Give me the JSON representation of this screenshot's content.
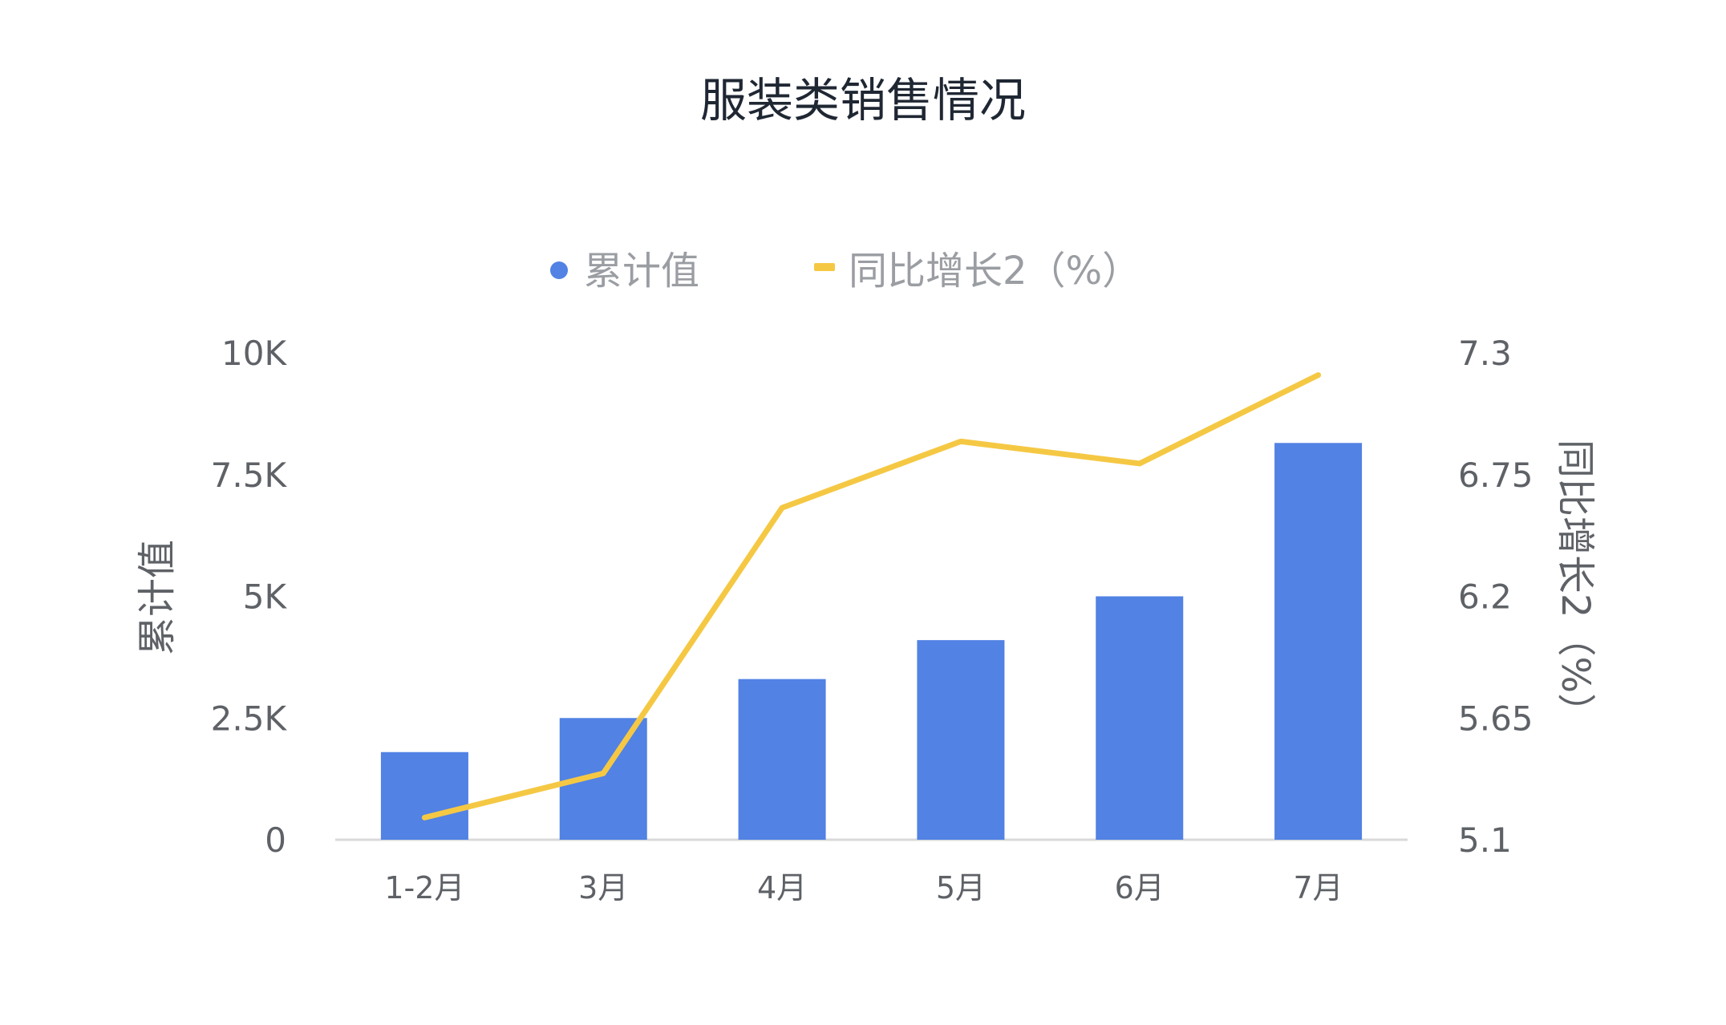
{
  "chart_data": {
    "type": "bar",
    "title": "服装类销售情况",
    "categories": [
      "1-2月",
      "3月",
      "4月",
      "5月",
      "6月",
      "7月"
    ],
    "series": [
      {
        "name": "累计值",
        "type": "bar",
        "axis": "left",
        "color": "#5182e4",
        "values": [
          1800,
          2500,
          3300,
          4100,
          5000,
          8150
        ]
      },
      {
        "name": "同比增长2（%）",
        "type": "line",
        "axis": "right",
        "color": "#f5c844",
        "values": [
          5.2,
          5.4,
          6.6,
          6.9,
          6.8,
          7.2
        ]
      }
    ],
    "y_left": {
      "label": "累计值",
      "range": [
        0,
        10000
      ],
      "ticks": [
        0,
        2500,
        5000,
        7500,
        10000
      ],
      "tick_labels": [
        "0",
        "2.5K",
        "5K",
        "7.5K",
        "10K"
      ]
    },
    "y_right": {
      "label": "同比增长2（%）",
      "range": [
        5.1,
        7.3
      ],
      "ticks": [
        5.1,
        5.65,
        6.2,
        6.75,
        7.3
      ],
      "tick_labels": [
        "5.1",
        "5.65",
        "6.2",
        "6.75",
        "7.3"
      ]
    },
    "legend_position": "top-center",
    "grid": false
  }
}
